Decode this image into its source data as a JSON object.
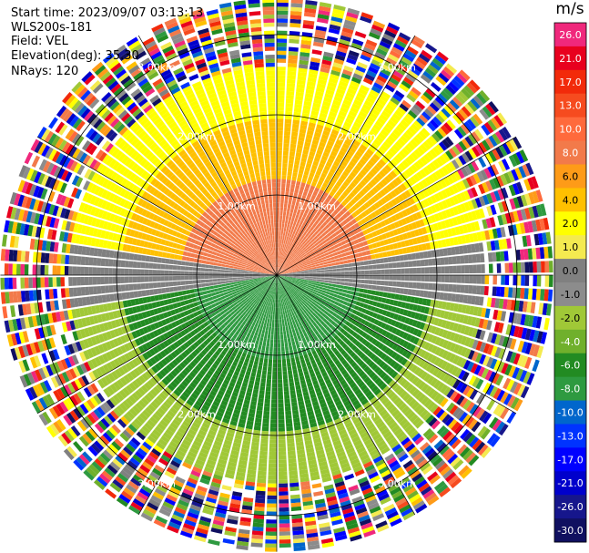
{
  "header": {
    "start_time": "Start time: 2023/09/07 03:13:13",
    "instrument": "WLS200s-181",
    "field": "Field: VEL",
    "elevation": "Elevation(deg): 35.30",
    "nrays": "NRays: 120"
  },
  "colorbar": {
    "unit": "m/s",
    "ticks": [
      "26.0",
      "21.0",
      "17.0",
      "13.0",
      "10.0",
      "8.0",
      "6.0",
      "4.0",
      "2.0",
      "1.0",
      "0.0",
      "-1.0",
      "-2.0",
      "-4.0",
      "-6.0",
      "-8.0",
      "-10.0",
      "-13.0",
      "-17.0",
      "-21.0",
      "-26.0",
      "-30.0"
    ],
    "colors": [
      "#f0287c",
      "#e8001e",
      "#f22a0a",
      "#f64b1f",
      "#ff6a3c",
      "#f27a4a",
      "#fe9b18",
      "#ffc000",
      "#ffff00",
      "#f4ea50",
      "#808080",
      "#8c8c8c",
      "#a0c837",
      "#70b02c",
      "#228b22",
      "#2e9a40",
      "#0066cc",
      "#0033ff",
      "#0000ff",
      "#0000cc",
      "#16168c",
      "#101060"
    ]
  },
  "chart_data": {
    "type": "heatmap",
    "projection": "polar PPI",
    "field": "VEL",
    "units": "m/s",
    "n_rays": 120,
    "range_rings": [
      "1.00km",
      "2.00km",
      "3.00km"
    ],
    "range_ring_values_km": [
      1.0,
      2.0,
      3.0
    ],
    "max_range_km": 3.45,
    "value_min": -30.0,
    "value_max": 26.0,
    "zones": [
      {
        "description": "north, near range",
        "range_km": [
          0,
          1.25
        ],
        "value": 8.0
      },
      {
        "description": "north, mid range",
        "range_km": [
          1.25,
          2.0
        ],
        "value": 4.0
      },
      {
        "description": "north, far range",
        "range_km": [
          2.0,
          2.6
        ],
        "value": 2.0
      },
      {
        "description": "near east-west axis",
        "range_km": [
          0,
          2.55
        ],
        "value": 0.0
      },
      {
        "description": "south, near range",
        "range_km": [
          0,
          1.1
        ],
        "value": -8.0
      },
      {
        "description": "south, mid range",
        "range_km": [
          1.1,
          2.0
        ],
        "value": -6.0
      },
      {
        "description": "south, far range",
        "range_km": [
          2.0,
          2.6
        ],
        "value": -2.0
      },
      {
        "description": "outer noise",
        "range_km": [
          2.6,
          3.45
        ],
        "value": "noise"
      }
    ],
    "grid": true
  }
}
